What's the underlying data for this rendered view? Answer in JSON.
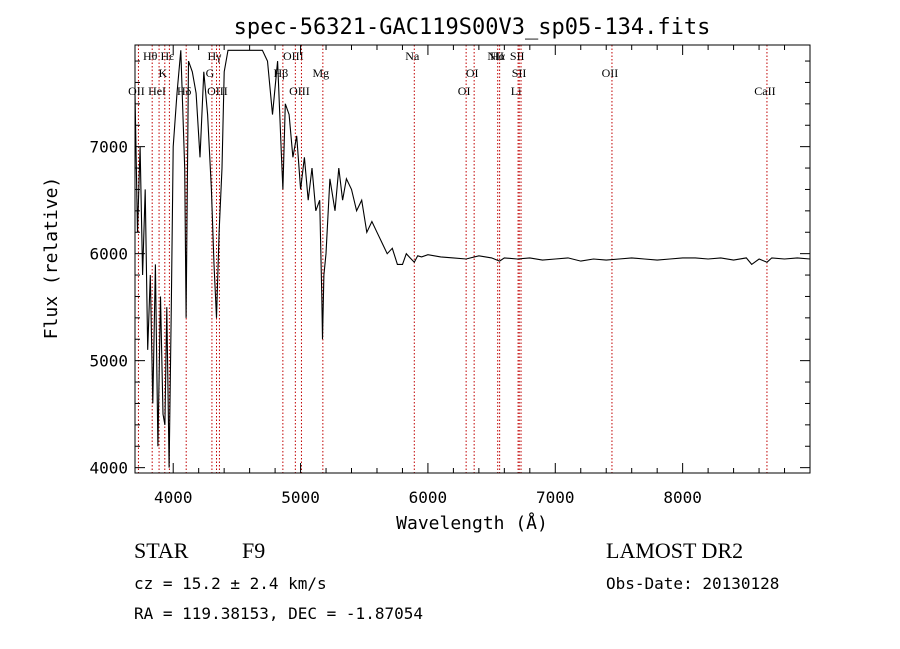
{
  "chart_data": {
    "type": "line",
    "title": "spec-56321-GAC119S00V3_sp05-134.fits",
    "xlabel": "Wavelength (Å)",
    "ylabel": "Flux (relative)",
    "xlim": [
      3700,
      9000
    ],
    "ylim": [
      3950,
      7950
    ],
    "xticks": [
      4000,
      5000,
      6000,
      7000,
      8000
    ],
    "yticks": [
      4000,
      5000,
      6000,
      7000
    ],
    "grid": false,
    "line_color": "#000000",
    "marker_color": "#c00000",
    "series": [
      {
        "x": [
          3700,
          3720,
          3740,
          3760,
          3780,
          3800,
          3820,
          3840,
          3860,
          3880,
          3900,
          3920,
          3935,
          3950,
          3968,
          3985,
          4000,
          4030,
          4060,
          4090,
          4101,
          4120,
          4150,
          4180,
          4210,
          4240,
          4270,
          4300,
          4320,
          4340,
          4360,
          4383,
          4400,
          4430,
          4460,
          4500,
          4540,
          4580,
          4620,
          4660,
          4700,
          4740,
          4780,
          4820,
          4850,
          4861,
          4880,
          4910,
          4940,
          4970,
          5000,
          5030,
          5060,
          5090,
          5120,
          5150,
          5167,
          5172,
          5183,
          5200,
          5230,
          5270,
          5300,
          5330,
          5360,
          5400,
          5440,
          5480,
          5520,
          5560,
          5600,
          5640,
          5680,
          5720,
          5760,
          5800,
          5830,
          5860,
          5893,
          5920,
          5950,
          6000,
          6100,
          6200,
          6300,
          6400,
          6500,
          6563,
          6600,
          6700,
          6800,
          6900,
          7000,
          7100,
          7200,
          7300,
          7400,
          7500,
          7600,
          7700,
          7800,
          7900,
          8000,
          8100,
          8200,
          8300,
          8400,
          8500,
          8542,
          8600,
          8662,
          8700,
          8800,
          8900,
          9000
        ],
        "y": [
          7500,
          6200,
          7000,
          5800,
          6600,
          5100,
          5800,
          4600,
          5900,
          4200,
          5600,
          4500,
          4400,
          5500,
          4000,
          5500,
          7000,
          7500,
          7900,
          6800,
          5400,
          7800,
          7700,
          7500,
          6900,
          7700,
          7300,
          6600,
          5900,
          5400,
          6200,
          6800,
          7700,
          7900,
          7900,
          7900,
          7900,
          7900,
          7900,
          7900,
          7900,
          7800,
          7300,
          7800,
          6900,
          6600,
          7400,
          7300,
          6900,
          7100,
          6600,
          6900,
          6500,
          6800,
          6400,
          6500,
          5600,
          5200,
          5800,
          6000,
          6700,
          6400,
          6800,
          6500,
          6700,
          6600,
          6400,
          6500,
          6200,
          6300,
          6200,
          6100,
          6000,
          6050,
          5900,
          5900,
          6000,
          5960,
          5920,
          5980,
          5970,
          5990,
          5970,
          5960,
          5950,
          5980,
          5960,
          5930,
          5960,
          5950,
          5960,
          5940,
          5950,
          5960,
          5930,
          5950,
          5940,
          5950,
          5960,
          5950,
          5940,
          5950,
          5960,
          5960,
          5950,
          5960,
          5940,
          5960,
          5900,
          5950,
          5920,
          5960,
          5950,
          5960,
          5950
        ]
      }
    ],
    "lines": [
      {
        "x": 3727,
        "label": "OII",
        "row": 3
      },
      {
        "x": 3835,
        "label": "Hθ",
        "row": 1
      },
      {
        "x": 3889,
        "label": "HeI",
        "row": 3
      },
      {
        "x": 3934,
        "label": "K",
        "row": 2
      },
      {
        "x": 3970,
        "label": "Hε",
        "row": 1
      },
      {
        "x": 4102,
        "label": "Hδ",
        "row": 3
      },
      {
        "x": 4304,
        "label": "G",
        "row": 2
      },
      {
        "x": 4340,
        "label": "Hγ",
        "row": 1
      },
      {
        "x": 4363,
        "label": "OIII",
        "row": 3
      },
      {
        "x": 4861,
        "label": "Hβ",
        "row": 2
      },
      {
        "x": 4959,
        "label": "OIII",
        "row": 1
      },
      {
        "x": 5007,
        "label": "OIII",
        "row": 3
      },
      {
        "x": 5175,
        "label": "Mg",
        "row": 2
      },
      {
        "x": 5893,
        "label": "Na",
        "row": 1
      },
      {
        "x": 6300,
        "label": "OI",
        "row": 3
      },
      {
        "x": 6363,
        "label": "OI",
        "row": 2
      },
      {
        "x": 6548,
        "label": "NII",
        "row": 1
      },
      {
        "x": 6563,
        "label": "Hα",
        "row": 1
      },
      {
        "x": 6708,
        "label": "Li",
        "row": 3
      },
      {
        "x": 6717,
        "label": "SII",
        "row": 1
      },
      {
        "x": 6731,
        "label": "SII",
        "row": 2
      },
      {
        "x": 7445,
        "label": "OII",
        "row": 2
      },
      {
        "x": 8662,
        "label": "CaII",
        "row": 3
      }
    ]
  },
  "info": {
    "class": "STAR",
    "subclass": "F9",
    "release": "LAMOST DR2",
    "redshift": "cz = 15.2 ± 2.4 km/s",
    "obs_date": "Obs-Date: 20130128",
    "coords": "RA = 119.38153, DEC =  -1.87054"
  }
}
